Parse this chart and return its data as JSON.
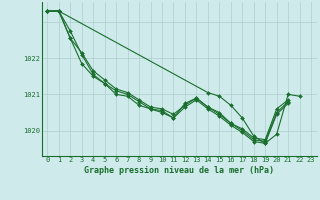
{
  "title": "Graphe pression niveau de la mer (hPa)",
  "background_color": "#ceeaea",
  "grid_color": "#aecece",
  "line_color": "#1a6e2e",
  "marker_color": "#1a6e2e",
  "xlim": [
    -0.5,
    23.5
  ],
  "ylim": [
    1019.3,
    1023.55
  ],
  "yticks": [
    1020,
    1021,
    1022,
    1023
  ],
  "ytick_labels": [
    "1020",
    "1021",
    "1022",
    ""
  ],
  "xticks": [
    0,
    1,
    2,
    3,
    4,
    5,
    6,
    7,
    8,
    9,
    10,
    11,
    12,
    13,
    14,
    15,
    16,
    17,
    18,
    19,
    20,
    21,
    22,
    23
  ],
  "series": [
    [
      1023.3,
      1023.3,
      1022.75,
      1022.1,
      1021.55,
      1021.3,
      1021.0,
      1020.95,
      1020.7,
      1020.6,
      1020.5,
      1020.35,
      1020.75,
      1020.9,
      1020.65,
      1020.5,
      1020.2,
      1020.05,
      1019.8,
      1019.75,
      1020.6,
      1020.85,
      null,
      null
    ],
    [
      1023.3,
      1023.3,
      1022.55,
      1021.85,
      1021.5,
      1021.3,
      1021.1,
      1021.0,
      1020.8,
      1020.6,
      1020.55,
      1020.35,
      1020.65,
      1020.85,
      1020.6,
      1020.4,
      1020.15,
      1019.95,
      1019.7,
      1019.65,
      1020.45,
      1020.75,
      null,
      null
    ],
    [
      1023.3,
      1023.3,
      1022.55,
      1022.15,
      1021.65,
      1021.4,
      1021.15,
      1021.05,
      1020.85,
      1020.65,
      1020.6,
      1020.45,
      1020.7,
      1020.9,
      1020.65,
      1020.45,
      1020.2,
      1020.0,
      1019.75,
      1019.7,
      1020.5,
      1020.8,
      null,
      null
    ],
    [
      1023.3,
      1023.3,
      null,
      null,
      null,
      null,
      null,
      null,
      null,
      null,
      null,
      null,
      null,
      null,
      1021.05,
      1020.95,
      1020.7,
      1020.35,
      1019.85,
      1019.65,
      1019.9,
      1021.0,
      1020.95,
      null
    ]
  ]
}
